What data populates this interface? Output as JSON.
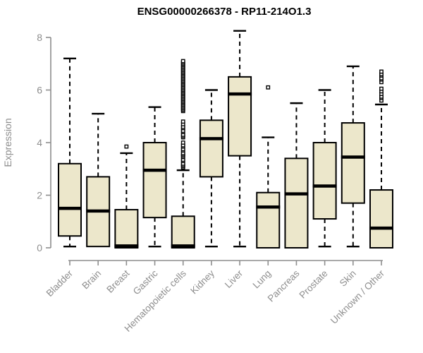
{
  "window": {
    "background": "#ffffff"
  },
  "chart_data": {
    "type": "boxplot",
    "title": "ENSG00000266378 - RP11-214O1.3",
    "xlabel": "",
    "ylabel": "Expression",
    "ylim": [
      0,
      8.3
    ],
    "yticks": [
      0,
      2,
      4,
      6,
      8
    ],
    "grid": false,
    "legend": null,
    "categories": [
      "Bladder",
      "Brain",
      "Breast",
      "Gastric",
      "Hematopoietic cells",
      "Kidney",
      "Liver",
      "Lung",
      "Pancreas",
      "Prostate",
      "Skin",
      "Unknown / Other"
    ],
    "boxes": [
      {
        "category": "Bladder",
        "whisker_low": 0.05,
        "q1": 0.45,
        "median": 1.5,
        "q3": 3.2,
        "whisker_high": 7.2,
        "outliers": []
      },
      {
        "category": "Brain",
        "whisker_low": 0,
        "q1": 0.05,
        "median": 1.4,
        "q3": 2.7,
        "whisker_high": 5.1,
        "outliers": []
      },
      {
        "category": "Breast",
        "whisker_low": 0,
        "q1": 0,
        "median": 0.07,
        "q3": 1.45,
        "whisker_high": 3.6,
        "outliers": [
          3.85
        ]
      },
      {
        "category": "Gastric",
        "whisker_low": 0.05,
        "q1": 1.15,
        "median": 2.95,
        "q3": 4.0,
        "whisker_high": 5.35,
        "outliers": []
      },
      {
        "category": "Hematopoietic cells",
        "whisker_low": 0,
        "q1": 0,
        "median": 0.07,
        "q3": 1.2,
        "whisker_high": 2.95,
        "outliers": [
          3.05,
          3.1,
          3.15,
          3.2,
          3.3,
          3.35,
          3.45,
          3.5,
          3.55,
          3.6,
          3.7,
          3.75,
          3.85,
          3.9,
          4.0,
          4.2,
          4.25,
          4.3,
          4.4,
          4.45,
          4.55,
          4.6,
          4.7,
          4.8,
          5.2,
          5.25,
          5.3,
          5.35,
          5.4,
          5.45,
          5.5,
          5.55,
          5.6,
          5.65,
          5.7,
          5.75,
          5.8,
          5.85,
          5.9,
          5.95,
          6.0,
          6.05,
          6.1,
          6.15,
          6.2,
          6.25,
          6.3,
          6.35,
          6.4,
          6.45,
          6.5,
          6.55,
          6.6,
          6.65,
          6.7,
          6.75,
          6.8,
          6.85,
          6.9,
          6.95,
          7.0,
          7.05,
          7.1
        ]
      },
      {
        "category": "Kidney",
        "whisker_low": 0.05,
        "q1": 2.7,
        "median": 4.15,
        "q3": 4.85,
        "whisker_high": 6.0,
        "outliers": []
      },
      {
        "category": "Liver",
        "whisker_low": 0.05,
        "q1": 3.5,
        "median": 5.85,
        "q3": 6.5,
        "whisker_high": 8.25,
        "outliers": []
      },
      {
        "category": "Lung",
        "whisker_low": 0,
        "q1": 0,
        "median": 1.55,
        "q3": 2.1,
        "whisker_high": 4.2,
        "outliers": [
          6.1
        ]
      },
      {
        "category": "Pancreas",
        "whisker_low": 0,
        "q1": 0,
        "median": 2.05,
        "q3": 3.4,
        "whisker_high": 5.5,
        "outliers": []
      },
      {
        "category": "Prostate",
        "whisker_low": 0.05,
        "q1": 1.1,
        "median": 2.35,
        "q3": 4.0,
        "whisker_high": 6.0,
        "outliers": []
      },
      {
        "category": "Skin",
        "whisker_low": 0.05,
        "q1": 1.7,
        "median": 3.45,
        "q3": 4.75,
        "whisker_high": 6.9,
        "outliers": []
      },
      {
        "category": "Unknown / Other",
        "whisker_low": 0,
        "q1": 0,
        "median": 0.75,
        "q3": 2.2,
        "whisker_high": 5.45,
        "outliers": [
          5.6,
          5.7,
          5.75,
          5.85,
          5.95,
          6.05,
          6.3,
          6.4,
          6.45,
          6.55,
          6.6,
          6.7
        ]
      }
    ],
    "colors": {
      "box_fill": "#ece7cb",
      "box_border": "#000000",
      "median": "#000000",
      "whisker": "#000000",
      "outlier_stroke": "#000000",
      "outlier_fill": "#ffffff",
      "axis": "#8e8e8e",
      "tick_label": "#8e8e8e",
      "title": "#000000"
    }
  }
}
